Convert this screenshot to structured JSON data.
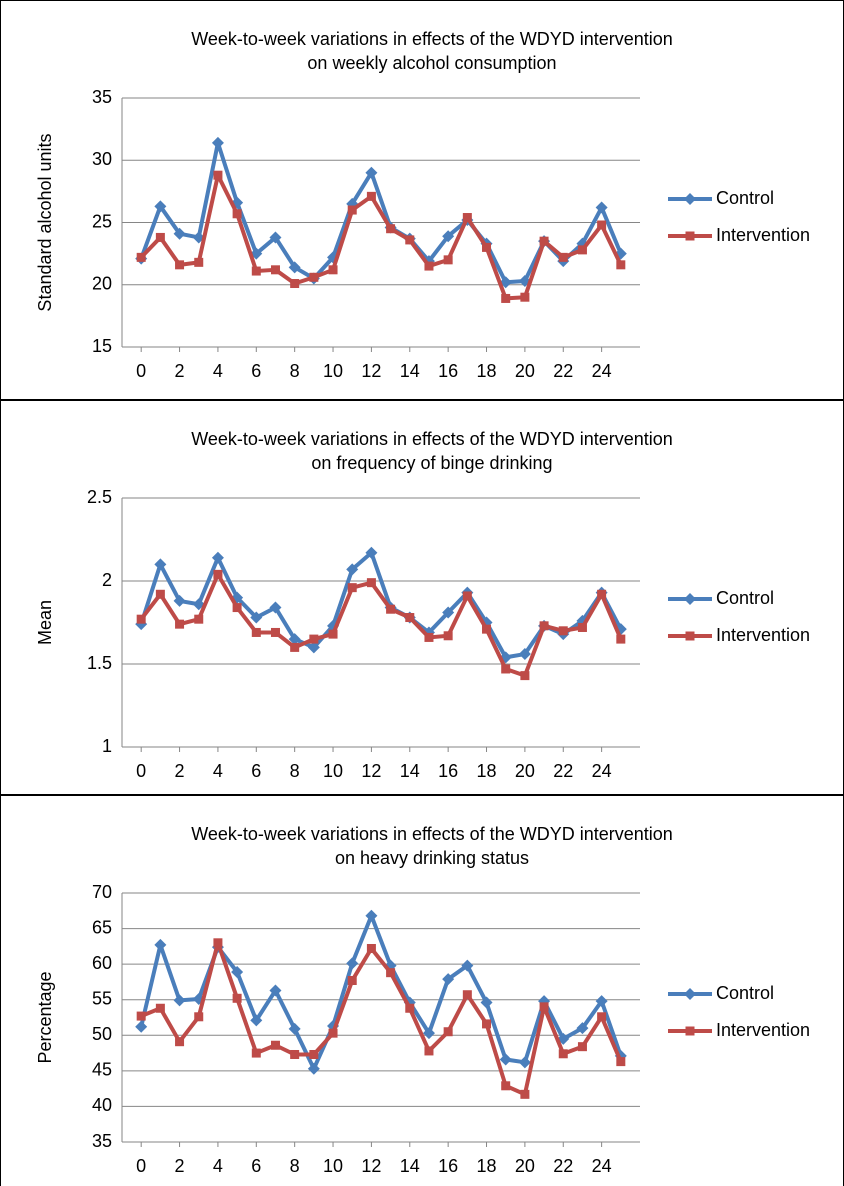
{
  "chart_data": [
    {
      "type": "line",
      "title": [
        "Week-to-week variations in effects of the WDYD intervention",
        "on weekly alcohol consumption"
      ],
      "y_label": "Standard alcohol units",
      "x": [
        0,
        1,
        2,
        3,
        4,
        5,
        6,
        7,
        8,
        9,
        10,
        11,
        12,
        13,
        14,
        15,
        16,
        17,
        18,
        19,
        20,
        21,
        22,
        23,
        24,
        25
      ],
      "xlim": [
        -1,
        26
      ],
      "xticks": [
        0,
        2,
        4,
        6,
        8,
        10,
        12,
        14,
        16,
        18,
        20,
        22,
        24
      ],
      "ylim": [
        15,
        35
      ],
      "yticks": [
        15,
        20,
        25,
        30,
        35
      ],
      "grid": true,
      "legend": "right",
      "series": [
        {
          "name": "Control",
          "color": "#4a7ebb",
          "marker": "diamond",
          "values": [
            22.1,
            26.3,
            24.1,
            23.8,
            31.4,
            26.6,
            22.5,
            23.8,
            21.4,
            20.5,
            22.2,
            26.5,
            29.0,
            24.6,
            23.7,
            21.9,
            23.9,
            25.2,
            23.3,
            20.2,
            20.3,
            23.5,
            21.9,
            23.3,
            26.2,
            22.5
          ]
        },
        {
          "name": "Intervention",
          "color": "#be4b48",
          "marker": "square",
          "values": [
            22.2,
            23.8,
            21.6,
            21.8,
            28.8,
            25.7,
            21.1,
            21.2,
            20.1,
            20.6,
            21.2,
            26.0,
            27.1,
            24.5,
            23.6,
            21.5,
            22.0,
            25.4,
            23.0,
            18.9,
            19.0,
            23.5,
            22.2,
            22.8,
            24.8,
            21.6
          ]
        }
      ]
    },
    {
      "type": "line",
      "title": [
        "Week-to-week variations in effects of the WDYD intervention",
        "on frequency of binge drinking"
      ],
      "y_label": "Mean",
      "x": [
        0,
        1,
        2,
        3,
        4,
        5,
        6,
        7,
        8,
        9,
        10,
        11,
        12,
        13,
        14,
        15,
        16,
        17,
        18,
        19,
        20,
        21,
        22,
        23,
        24,
        25
      ],
      "xlim": [
        -1,
        26
      ],
      "xticks": [
        0,
        2,
        4,
        6,
        8,
        10,
        12,
        14,
        16,
        18,
        20,
        22,
        24
      ],
      "ylim": [
        1,
        2.5
      ],
      "yticks": [
        1,
        1.5,
        2,
        2.5
      ],
      "grid": true,
      "legend": "right",
      "series": [
        {
          "name": "Control",
          "color": "#4a7ebb",
          "marker": "diamond",
          "values": [
            1.74,
            2.1,
            1.88,
            1.86,
            2.14,
            1.9,
            1.78,
            1.84,
            1.65,
            1.6,
            1.73,
            2.07,
            2.17,
            1.84,
            1.78,
            1.69,
            1.81,
            1.93,
            1.75,
            1.54,
            1.56,
            1.73,
            1.68,
            1.76,
            1.93,
            1.71
          ]
        },
        {
          "name": "Intervention",
          "color": "#be4b48",
          "marker": "square",
          "values": [
            1.77,
            1.92,
            1.74,
            1.77,
            2.04,
            1.84,
            1.69,
            1.69,
            1.6,
            1.65,
            1.68,
            1.96,
            1.99,
            1.83,
            1.78,
            1.66,
            1.67,
            1.91,
            1.71,
            1.47,
            1.43,
            1.73,
            1.7,
            1.72,
            1.92,
            1.65
          ]
        }
      ]
    },
    {
      "type": "line",
      "title": [
        "Week-to-week variations in effects of the WDYD intervention",
        "on heavy drinking status"
      ],
      "y_label": "Percentage",
      "x": [
        0,
        1,
        2,
        3,
        4,
        5,
        6,
        7,
        8,
        9,
        10,
        11,
        12,
        13,
        14,
        15,
        16,
        17,
        18,
        19,
        20,
        21,
        22,
        23,
        24,
        25
      ],
      "xlim": [
        -1,
        26
      ],
      "xticks": [
        0,
        2,
        4,
        6,
        8,
        10,
        12,
        14,
        16,
        18,
        20,
        22,
        24
      ],
      "ylim": [
        35,
        70
      ],
      "yticks": [
        35,
        40,
        45,
        50,
        55,
        60,
        65,
        70
      ],
      "grid": true,
      "legend": "right",
      "series": [
        {
          "name": "Control",
          "color": "#4a7ebb",
          "marker": "diamond",
          "values": [
            51.2,
            62.7,
            54.9,
            55.1,
            62.4,
            58.9,
            52.1,
            56.3,
            50.9,
            45.3,
            51.3,
            60.1,
            66.8,
            59.8,
            54.6,
            50.3,
            57.9,
            59.8,
            54.6,
            46.6,
            46.2,
            54.8,
            49.5,
            51.0,
            54.8,
            47.1
          ]
        },
        {
          "name": "Intervention",
          "color": "#be4b48",
          "marker": "square",
          "values": [
            52.7,
            53.8,
            49.1,
            52.6,
            63.0,
            55.2,
            47.5,
            48.6,
            47.3,
            47.3,
            50.3,
            57.7,
            62.2,
            58.8,
            53.8,
            47.8,
            50.5,
            55.7,
            51.6,
            42.9,
            41.7,
            54.0,
            47.4,
            48.4,
            52.6,
            46.3
          ]
        }
      ]
    }
  ]
}
